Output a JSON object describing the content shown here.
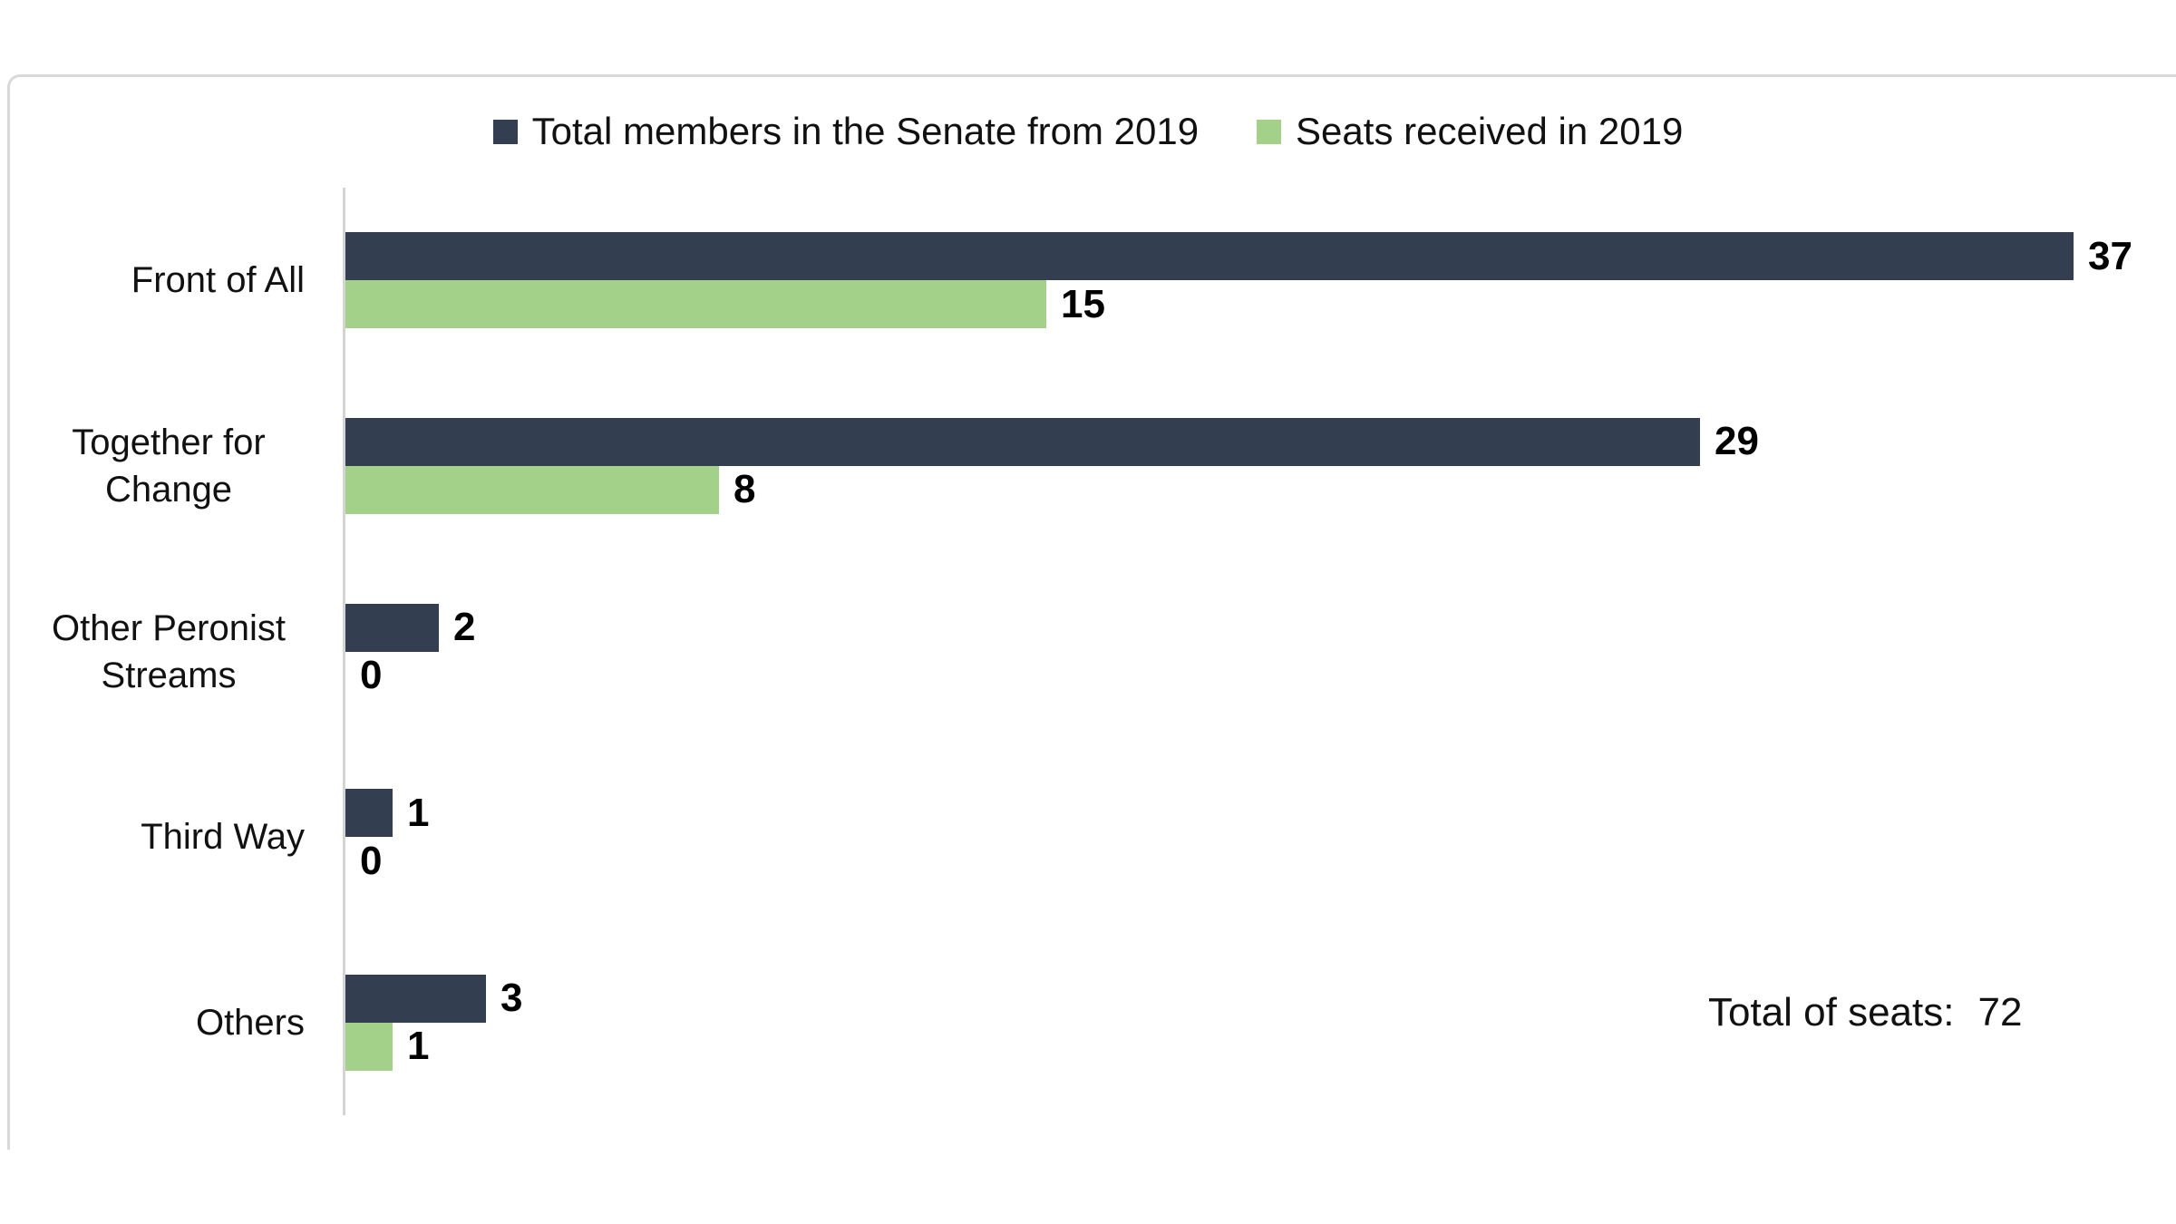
{
  "chart_data": {
    "type": "bar",
    "orientation": "horizontal",
    "title": "",
    "categories": [
      "Front of All",
      "Together for Change",
      "Other Peronist Streams",
      "Third Way",
      "Others"
    ],
    "series": [
      {
        "name": "Total members in the Senate from 2019",
        "color": "#333F50",
        "values": [
          37,
          29,
          2,
          1,
          3
        ]
      },
      {
        "name": "Seats received in 2019",
        "color": "#A3D189",
        "values": [
          15,
          8,
          0,
          0,
          1
        ]
      }
    ],
    "xlim": [
      0,
      39.2
    ],
    "grid": false,
    "legend_position": "top",
    "value_labels": true,
    "annotation": {
      "label": "Total of seats:",
      "value": "72"
    }
  },
  "colors": {
    "frame_border": "#d9d9d9",
    "axis_line": "#d4d4d4",
    "text": "#111111"
  }
}
